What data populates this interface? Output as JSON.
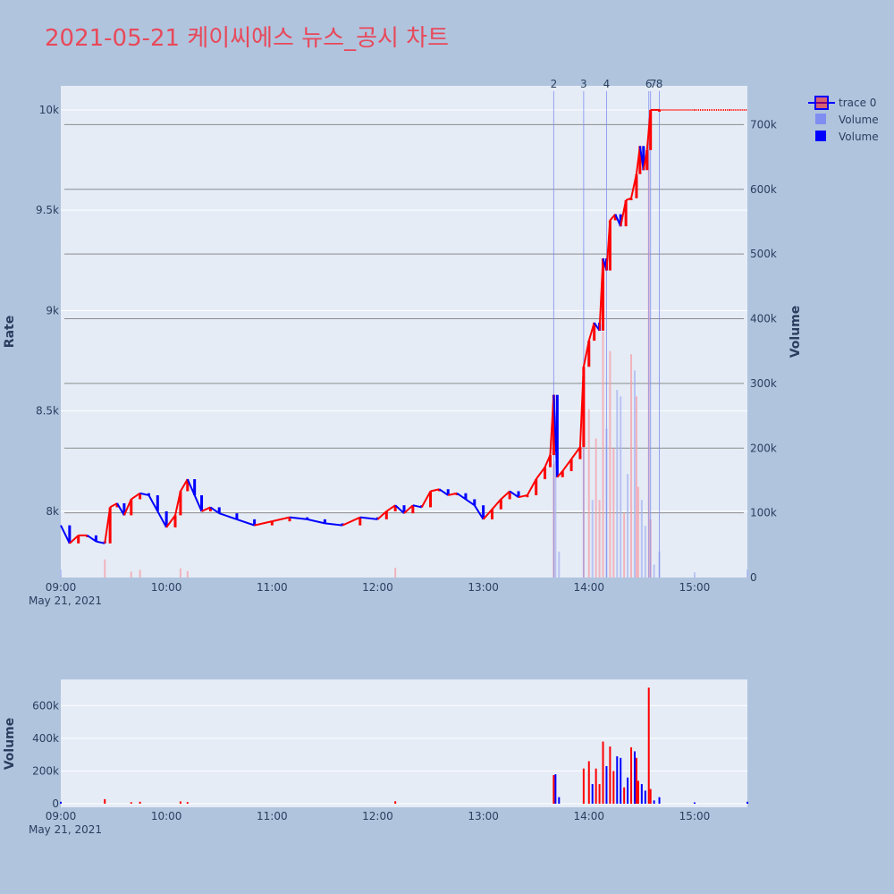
{
  "title": "2021-05-21 케이씨에스 뉴스_공시 차트",
  "chart_data": {
    "type": "candlestick",
    "x_tick_labels": [
      "09:00",
      "10:00",
      "11:00",
      "12:00",
      "13:00",
      "14:00",
      "15:00"
    ],
    "x_date_label": "May 21, 2021",
    "x_range": [
      "09:00",
      "15:30"
    ],
    "ylabel": "Rate",
    "ylim": [
      7670,
      10120
    ],
    "y_tick_labels": [
      "8k",
      "8.5k",
      "9k",
      "9.5k",
      "10k"
    ],
    "y2label": "Volume",
    "y2lim": [
      0,
      760000
    ],
    "y2_tick_labels": [
      "0",
      "100k",
      "200k",
      "300k",
      "400k",
      "500k",
      "600k",
      "700k"
    ],
    "volume_panel": {
      "ylabel": "Volume",
      "ylim": [
        0,
        760000
      ],
      "y_tick_labels": [
        "0",
        "200k",
        "400k",
        "600k"
      ]
    },
    "legend": {
      "position": "top-right",
      "entries": [
        "trace 0",
        "Volume",
        "Volume"
      ]
    },
    "event_markers": [
      {
        "label": "2",
        "time": "13:40"
      },
      {
        "label": "3",
        "time": "13:57"
      },
      {
        "label": "4",
        "time": "14:10"
      },
      {
        "label": "6",
        "time": "14:34"
      },
      {
        "label": "7",
        "time": "14:35"
      },
      {
        "label": "8",
        "time": "14:40"
      }
    ],
    "colors": {
      "up": "#ff0000",
      "down": "#0000ff",
      "grid": "#ffffff",
      "plot_bg": "#e5ecf6",
      "paper_bg": "#b0c4de"
    },
    "series": [
      {
        "name": "trace 0",
        "points": [
          [
            "09:00",
            7930
          ],
          [
            "09:05",
            7840
          ],
          [
            "09:10",
            7880
          ],
          [
            "09:15",
            7880
          ],
          [
            "09:20",
            7850
          ],
          [
            "09:25",
            7840
          ],
          [
            "09:28",
            8020
          ],
          [
            "09:32",
            8040
          ],
          [
            "09:36",
            7980
          ],
          [
            "09:40",
            8060
          ],
          [
            "09:45",
            8090
          ],
          [
            "09:50",
            8080
          ],
          [
            "09:55",
            8000
          ],
          [
            "10:00",
            7920
          ],
          [
            "10:05",
            7980
          ],
          [
            "10:08",
            8100
          ],
          [
            "10:12",
            8160
          ],
          [
            "10:16",
            8080
          ],
          [
            "10:20",
            8000
          ],
          [
            "10:25",
            8020
          ],
          [
            "10:30",
            7990
          ],
          [
            "10:40",
            7960
          ],
          [
            "10:50",
            7930
          ],
          [
            "11:00",
            7950
          ],
          [
            "11:10",
            7970
          ],
          [
            "11:20",
            7960
          ],
          [
            "11:30",
            7940
          ],
          [
            "11:40",
            7930
          ],
          [
            "11:50",
            7970
          ],
          [
            "12:00",
            7960
          ],
          [
            "12:05",
            8000
          ],
          [
            "12:10",
            8030
          ],
          [
            "12:15",
            7990
          ],
          [
            "12:20",
            8030
          ],
          [
            "12:25",
            8020
          ],
          [
            "12:30",
            8100
          ],
          [
            "12:35",
            8110
          ],
          [
            "12:40",
            8080
          ],
          [
            "12:45",
            8090
          ],
          [
            "12:50",
            8060
          ],
          [
            "12:55",
            8030
          ],
          [
            "13:00",
            7960
          ],
          [
            "13:05",
            8010
          ],
          [
            "13:10",
            8060
          ],
          [
            "13:15",
            8100
          ],
          [
            "13:20",
            8070
          ],
          [
            "13:25",
            8080
          ],
          [
            "13:30",
            8160
          ],
          [
            "13:35",
            8220
          ],
          [
            "13:38",
            8280
          ],
          [
            "13:40",
            8580
          ],
          [
            "13:42",
            8170
          ],
          [
            "13:45",
            8200
          ],
          [
            "13:50",
            8260
          ],
          [
            "13:55",
            8320
          ],
          [
            "13:57",
            8720
          ],
          [
            "14:00",
            8850
          ],
          [
            "14:03",
            8940
          ],
          [
            "14:06",
            8900
          ],
          [
            "14:08",
            9260
          ],
          [
            "14:10",
            9200
          ],
          [
            "14:12",
            9450
          ],
          [
            "14:15",
            9480
          ],
          [
            "14:18",
            9420
          ],
          [
            "14:21",
            9550
          ],
          [
            "14:24",
            9560
          ],
          [
            "14:27",
            9680
          ],
          [
            "14:29",
            9820
          ],
          [
            "14:31",
            9700
          ],
          [
            "14:33",
            9800
          ],
          [
            "14:35",
            10000
          ],
          [
            "14:40",
            10000
          ],
          [
            "15:00",
            10000
          ],
          [
            "15:20",
            10000
          ],
          [
            "15:30",
            10000
          ]
        ]
      }
    ],
    "volume_bars": [
      {
        "time": "09:00",
        "value": 12000,
        "dir": "down"
      },
      {
        "time": "09:25",
        "value": 28000,
        "dir": "up"
      },
      {
        "time": "09:40",
        "value": 9000,
        "dir": "up"
      },
      {
        "time": "09:45",
        "value": 12000,
        "dir": "up"
      },
      {
        "time": "10:08",
        "value": 14000,
        "dir": "up"
      },
      {
        "time": "10:12",
        "value": 10000,
        "dir": "up"
      },
      {
        "time": "12:10",
        "value": 15000,
        "dir": "up"
      },
      {
        "time": "13:40",
        "value": 175000,
        "dir": "up"
      },
      {
        "time": "13:41",
        "value": 180000,
        "dir": "down"
      },
      {
        "time": "13:43",
        "value": 40000,
        "dir": "down"
      },
      {
        "time": "13:57",
        "value": 215000,
        "dir": "up"
      },
      {
        "time": "14:00",
        "value": 260000,
        "dir": "up"
      },
      {
        "time": "14:02",
        "value": 120000,
        "dir": "down"
      },
      {
        "time": "14:04",
        "value": 215000,
        "dir": "up"
      },
      {
        "time": "14:06",
        "value": 120000,
        "dir": "up"
      },
      {
        "time": "14:08",
        "value": 380000,
        "dir": "up"
      },
      {
        "time": "14:10",
        "value": 230000,
        "dir": "down"
      },
      {
        "time": "14:12",
        "value": 350000,
        "dir": "up"
      },
      {
        "time": "14:14",
        "value": 200000,
        "dir": "up"
      },
      {
        "time": "14:16",
        "value": 290000,
        "dir": "down"
      },
      {
        "time": "14:18",
        "value": 280000,
        "dir": "down"
      },
      {
        "time": "14:20",
        "value": 100000,
        "dir": "up"
      },
      {
        "time": "14:22",
        "value": 160000,
        "dir": "down"
      },
      {
        "time": "14:24",
        "value": 345000,
        "dir": "up"
      },
      {
        "time": "14:26",
        "value": 320000,
        "dir": "down"
      },
      {
        "time": "14:27",
        "value": 280000,
        "dir": "up"
      },
      {
        "time": "14:28",
        "value": 140000,
        "dir": "up"
      },
      {
        "time": "14:30",
        "value": 120000,
        "dir": "down"
      },
      {
        "time": "14:32",
        "value": 80000,
        "dir": "down"
      },
      {
        "time": "14:34",
        "value": 710000,
        "dir": "up"
      },
      {
        "time": "14:35",
        "value": 90000,
        "dir": "up"
      },
      {
        "time": "14:37",
        "value": 20000,
        "dir": "down"
      },
      {
        "time": "14:40",
        "value": 40000,
        "dir": "down"
      },
      {
        "time": "15:00",
        "value": 8000,
        "dir": "down"
      },
      {
        "time": "15:30",
        "value": 12000,
        "dir": "down"
      }
    ]
  }
}
